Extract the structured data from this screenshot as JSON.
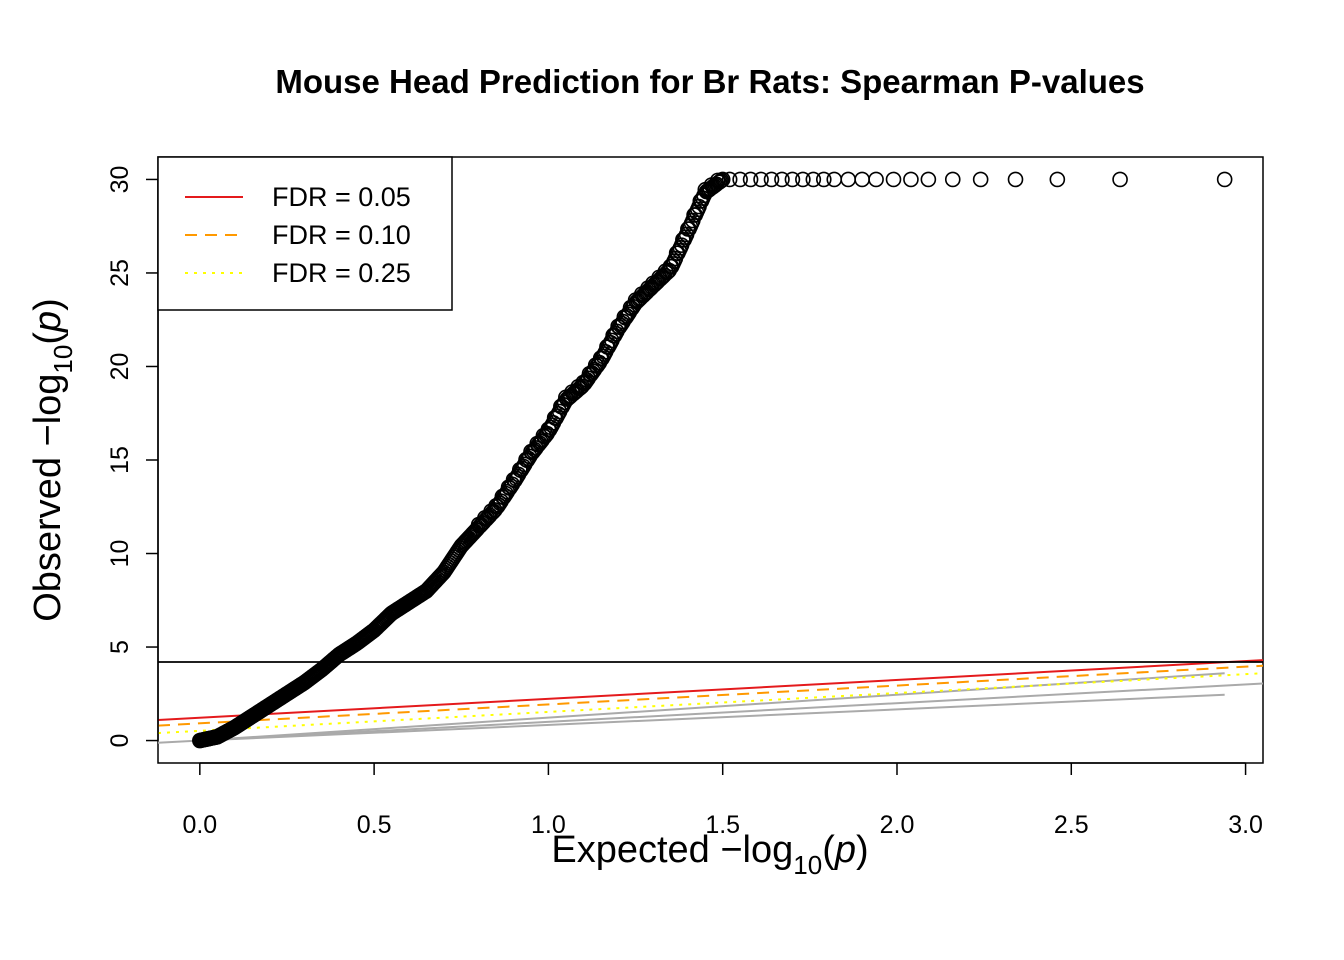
{
  "chart_data": {
    "type": "scatter",
    "title": "Mouse Head Prediction for Br Rats: Spearman P-values",
    "xlabel": "Expected  −log10(p)",
    "ylabel": "Observed  −log10(p)",
    "xlim": [
      -0.12,
      3.05
    ],
    "ylim": [
      -1.2,
      31.2
    ],
    "x_ticks": [
      "0.0",
      "0.5",
      "1.0",
      "1.5",
      "2.0",
      "2.5",
      "3.0"
    ],
    "y_ticks": [
      "0",
      "5",
      "10",
      "15",
      "20",
      "25",
      "30"
    ],
    "grid": false,
    "legend_position": "top-left",
    "legend": [
      {
        "label": "FDR = 0.05",
        "color": "#e41a1c",
        "dash": "solid"
      },
      {
        "label": "FDR = 0.10",
        "color": "#ff9900",
        "dash": "dashed"
      },
      {
        "label": "FDR = 0.25",
        "color": "#ffff00",
        "dash": "dotted"
      }
    ],
    "curve": [
      [
        0.0,
        0.0
      ],
      [
        0.05,
        0.2
      ],
      [
        0.1,
        0.7
      ],
      [
        0.15,
        1.3
      ],
      [
        0.2,
        1.9
      ],
      [
        0.25,
        2.5
      ],
      [
        0.3,
        3.1
      ],
      [
        0.35,
        3.8
      ],
      [
        0.4,
        4.6
      ],
      [
        0.45,
        5.2
      ],
      [
        0.5,
        5.9
      ],
      [
        0.55,
        6.8
      ],
      [
        0.6,
        7.4
      ],
      [
        0.65,
        8.0
      ],
      [
        0.7,
        9.0
      ],
      [
        0.75,
        10.4
      ],
      [
        0.8,
        11.4
      ],
      [
        0.85,
        12.4
      ],
      [
        0.9,
        13.8
      ],
      [
        0.95,
        15.3
      ],
      [
        1.0,
        16.5
      ],
      [
        1.05,
        18.2
      ],
      [
        1.1,
        19.0
      ],
      [
        1.15,
        20.3
      ],
      [
        1.2,
        22.0
      ],
      [
        1.25,
        23.4
      ],
      [
        1.3,
        24.3
      ],
      [
        1.35,
        25.2
      ],
      [
        1.4,
        27.2
      ],
      [
        1.45,
        29.3
      ],
      [
        1.5,
        30.0
      ]
    ],
    "plateau_x": [
      1.52,
      1.55,
      1.58,
      1.61,
      1.64,
      1.67,
      1.7,
      1.73,
      1.76,
      1.79,
      1.82,
      1.86,
      1.9,
      1.94,
      1.99,
      2.04,
      2.09,
      2.16,
      2.24,
      2.34,
      2.46,
      2.64,
      2.94
    ],
    "plateau_y": 30,
    "threshold_hline": 4.2,
    "fdr_lines": [
      {
        "name": "FDR = 0.05",
        "x": [
          -0.12,
          3.05
        ],
        "y": [
          1.1,
          4.3
        ],
        "color": "#e41a1c",
        "dash": "solid"
      },
      {
        "name": "FDR = 0.10",
        "x": [
          -0.12,
          3.05
        ],
        "y": [
          0.8,
          4.0
        ],
        "color": "#ff9900",
        "dash": "dashed"
      },
      {
        "name": "FDR = 0.25",
        "x": [
          -0.12,
          3.05
        ],
        "y": [
          0.4,
          3.6
        ],
        "color": "#ffff00",
        "dash": "dotted"
      }
    ],
    "reference_lines": [
      {
        "x": [
          -0.12,
          3.05
        ],
        "y": [
          -0.12,
          3.05
        ],
        "color": "#aaaaaa"
      },
      {
        "x": [
          0.0,
          2.94
        ],
        "y": [
          0.0,
          2.45
        ],
        "color": "#aaaaaa"
      },
      {
        "x": [
          0.0,
          2.94
        ],
        "y": [
          0.0,
          3.6
        ],
        "color": "#aaaaaa"
      }
    ]
  }
}
